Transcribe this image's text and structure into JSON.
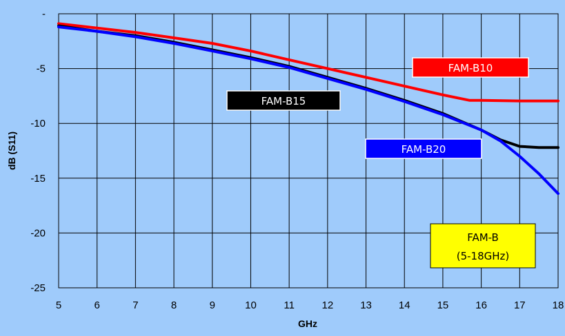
{
  "chart_data": {
    "type": "line",
    "title": "",
    "xlabel": "GHz",
    "ylabel": "dB (S11)",
    "xlim": [
      5,
      18
    ],
    "ylim": [
      -25,
      0
    ],
    "x_ticks": [
      5,
      6,
      7,
      8,
      9,
      10,
      11,
      12,
      13,
      14,
      15,
      16,
      17,
      18
    ],
    "y_ticks": [
      0,
      -5,
      -10,
      -15,
      -20,
      -25
    ],
    "y_tick_labels": [
      "-",
      "-5",
      "-10",
      "-15",
      "-20",
      "-25"
    ],
    "grid": true,
    "series": [
      {
        "name": "FAM-B10",
        "color": "#ff0000",
        "points": [
          [
            5,
            -0.9
          ],
          [
            6,
            -1.3
          ],
          [
            7,
            -1.7
          ],
          [
            8,
            -2.2
          ],
          [
            9,
            -2.7
          ],
          [
            10,
            -3.4
          ],
          [
            11,
            -4.2
          ],
          [
            12,
            -5.0
          ],
          [
            13,
            -5.8
          ],
          [
            14,
            -6.6
          ],
          [
            15,
            -7.4
          ],
          [
            15.7,
            -7.9
          ],
          [
            16,
            -7.9
          ],
          [
            17,
            -7.95
          ],
          [
            18,
            -7.95
          ]
        ]
      },
      {
        "name": "FAM-B15",
        "color": "#000000",
        "points": [
          [
            5,
            -1.1
          ],
          [
            6,
            -1.6
          ],
          [
            7,
            -2.0
          ],
          [
            8,
            -2.6
          ],
          [
            9,
            -3.3
          ],
          [
            10,
            -4.0
          ],
          [
            11,
            -4.8
          ],
          [
            12,
            -5.8
          ],
          [
            13,
            -6.8
          ],
          [
            14,
            -7.9
          ],
          [
            15,
            -9.1
          ],
          [
            16,
            -10.6
          ],
          [
            16.5,
            -11.5
          ],
          [
            17,
            -12.1
          ],
          [
            17.5,
            -12.2
          ],
          [
            18,
            -12.2
          ]
        ]
      },
      {
        "name": "FAM-B20",
        "color": "#0000ff",
        "points": [
          [
            5,
            -1.2
          ],
          [
            6,
            -1.6
          ],
          [
            7,
            -2.1
          ],
          [
            8,
            -2.7
          ],
          [
            9,
            -3.4
          ],
          [
            10,
            -4.1
          ],
          [
            11,
            -4.9
          ],
          [
            12,
            -5.9
          ],
          [
            13,
            -6.9
          ],
          [
            14,
            -8.0
          ],
          [
            15,
            -9.2
          ],
          [
            16,
            -10.6
          ],
          [
            16.5,
            -11.6
          ],
          [
            17,
            -13.0
          ],
          [
            17.5,
            -14.6
          ],
          [
            18,
            -16.4
          ]
        ]
      }
    ],
    "legend_boxes": [
      {
        "key": "b10",
        "label": "FAM-B10",
        "bg": "#ff0000",
        "fg": "#ffffff"
      },
      {
        "key": "b15",
        "label": "FAM-B15",
        "bg": "#000000",
        "fg": "#ffffff"
      },
      {
        "key": "b20",
        "label": "FAM-B20",
        "bg": "#0000ff",
        "fg": "#ffffff"
      }
    ],
    "annotation": {
      "line1": "FAM-B",
      "line2": "(5-18GHz)",
      "bg": "#ffff00",
      "fg": "#000000"
    }
  }
}
